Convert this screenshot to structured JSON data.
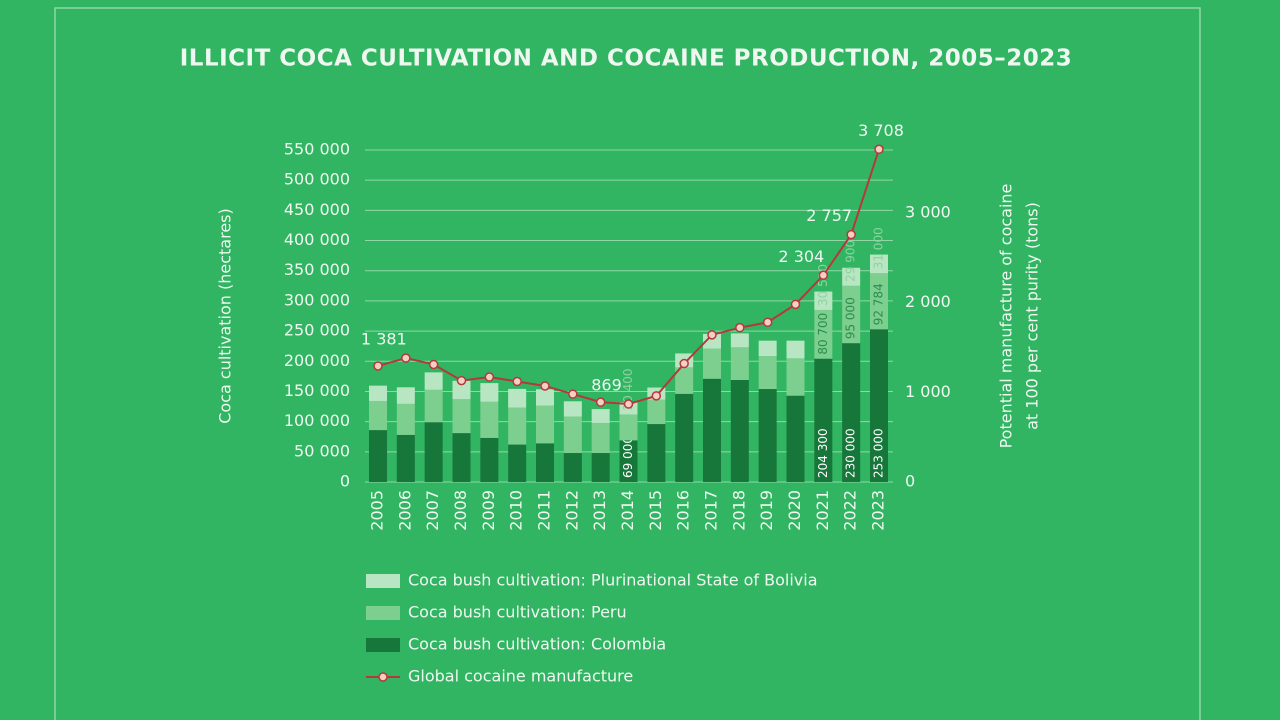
{
  "chart_data": {
    "type": "bar",
    "stacked": true,
    "title": "ILLICIT COCA CULTIVATION AND COCAINE PRODUCTION, 2005–2023",
    "ylabel": "Coca cultivation (hectares)",
    "y2label": [
      "Potential manufacture of cocaine",
      "at 100 per cent purity (tons)"
    ],
    "categories": [
      "2005",
      "2006",
      "2007",
      "2008",
      "2009",
      "2010",
      "2011",
      "2012",
      "2013",
      "2014",
      "2015",
      "2016",
      "2017",
      "2018",
      "2019",
      "2020",
      "2021",
      "2022",
      "2023"
    ],
    "ylim": [
      0,
      550000
    ],
    "yticks": [
      0,
      {
        "value": 50000,
        "label": "50 000"
      },
      {
        "value": 100000,
        "label": "100 000"
      },
      {
        "value": 150000,
        "label": "150 000"
      },
      {
        "value": 200000,
        "label": "200 000"
      },
      {
        "value": 250000,
        "label": "250 000"
      },
      {
        "value": 300000,
        "label": "300 000"
      },
      {
        "value": 350000,
        "label": "350 000"
      },
      {
        "value": 400000,
        "label": "400 000"
      },
      {
        "value": 450000,
        "label": "450 000"
      },
      {
        "value": 500000,
        "label": "500 000"
      },
      {
        "value": 550000,
        "label": "550 000"
      }
    ],
    "y2lim": [
      0,
      3700
    ],
    "y2ticks": [
      0,
      {
        "value": 1000,
        "label": "1 000"
      },
      {
        "value": 2000,
        "label": "2 000"
      },
      {
        "value": 3000,
        "label": "3 000"
      }
    ],
    "grid": true,
    "series": [
      {
        "name": "Coca bush cultivation: Colombia",
        "type": "bar",
        "color": "#17773a",
        "values": [
          86000,
          78000,
          99000,
          81000,
          73000,
          62000,
          64000,
          48000,
          48000,
          69000,
          96000,
          146000,
          171000,
          169000,
          154000,
          143000,
          204300,
          230000,
          253000
        ],
        "value_labels": [
          null,
          null,
          null,
          null,
          null,
          null,
          null,
          null,
          null,
          "69 000",
          null,
          null,
          null,
          null,
          null,
          null,
          "204 300",
          "230 000",
          "253 000"
        ]
      },
      {
        "name": "Coca bush cultivation: Peru",
        "type": "bar",
        "color": "#7ccf8e",
        "values": [
          48200,
          51400,
          53700,
          56100,
          59900,
          61200,
          62500,
          60400,
          49800,
          42900,
          40300,
          43900,
          49900,
          54134,
          54655,
          61777,
          80700,
          95000,
          92784
        ],
        "value_labels": [
          null,
          null,
          null,
          null,
          null,
          null,
          null,
          null,
          null,
          null,
          null,
          null,
          null,
          null,
          null,
          null,
          "80 700",
          "95 000",
          "92 784"
        ]
      },
      {
        "name": "Coca bush cultivation: Plurinational State of Bolivia",
        "type": "bar",
        "color": "#b8e6c2",
        "values": [
          25400,
          27500,
          28900,
          30500,
          30900,
          31000,
          27200,
          25300,
          23000,
          20400,
          20200,
          23100,
          24500,
          23100,
          25500,
          29400,
          30500,
          29900,
          31000
        ],
        "value_labels": [
          null,
          null,
          null,
          null,
          null,
          null,
          null,
          null,
          null,
          "20 400",
          null,
          null,
          null,
          null,
          null,
          null,
          "30 500",
          "29 900",
          "31 000"
        ]
      },
      {
        "name": "Global cocaine manufacture",
        "type": "line",
        "axis": "y2",
        "color": "#b5383a",
        "values": [
          1293,
          1381,
          1310,
          1130,
          1170,
          1120,
          1070,
          980,
          890,
          869,
          960,
          1320,
          1640,
          1720,
          1780,
          1980,
          2304,
          2757,
          3708
        ],
        "value_labels": [
          null,
          "1 381",
          null,
          null,
          null,
          null,
          null,
          null,
          null,
          "869",
          null,
          null,
          null,
          null,
          null,
          null,
          "2 304",
          "2 757",
          "3 708"
        ]
      }
    ],
    "legend_order": [
      2,
      1,
      0,
      3
    ]
  }
}
